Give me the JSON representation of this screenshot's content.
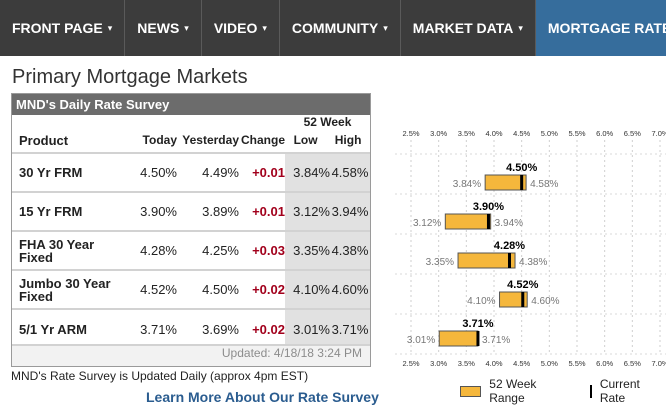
{
  "nav": {
    "items": [
      {
        "label": "FRONT PAGE",
        "caret": "▾"
      },
      {
        "label": "NEWS",
        "caret": "▾"
      },
      {
        "label": "VIDEO",
        "caret": "▾"
      },
      {
        "label": "COMMUNITY",
        "caret": "▾"
      },
      {
        "label": "MARKET DATA",
        "caret": "▾"
      },
      {
        "label": "MORTGAGE RATES",
        "caret": ""
      }
    ],
    "active_index": 5
  },
  "page_title": "Primary Mortgage Markets",
  "survey": {
    "header": "MND's Daily Rate Survey",
    "columns": {
      "product": "Product",
      "today": "Today",
      "yesterday": "Yesterday",
      "change": "Change",
      "week52": "52 Week",
      "low": "Low",
      "high": "High"
    },
    "rows": [
      {
        "product": "30 Yr FRM",
        "today": "4.50%",
        "yesterday": "4.49%",
        "change": "+0.01",
        "low": "3.84%",
        "high": "4.58%"
      },
      {
        "product": "15 Yr FRM",
        "today": "3.90%",
        "yesterday": "3.89%",
        "change": "+0.01",
        "low": "3.12%",
        "high": "3.94%"
      },
      {
        "product": "FHA 30 Year Fixed",
        "today": "4.28%",
        "yesterday": "4.25%",
        "change": "+0.03",
        "low": "3.35%",
        "high": "4.38%"
      },
      {
        "product": "Jumbo 30 Year Fixed",
        "today": "4.52%",
        "yesterday": "4.50%",
        "change": "+0.02",
        "low": "4.10%",
        "high": "4.60%"
      },
      {
        "product": "5/1 Yr ARM",
        "today": "3.71%",
        "yesterday": "3.69%",
        "change": "+0.02",
        "low": "3.01%",
        "high": "3.71%"
      }
    ],
    "updated": "Updated: 4/18/18 3:24 PM"
  },
  "note": "MND's Rate Survey is Updated Daily (approx 4pm EST)",
  "learn_more": "Learn More About Our Rate Survey",
  "legend": {
    "range_label": "52 Week Range",
    "current_label": "Current Rate"
  },
  "colors": {
    "nav_bg": "#3c3c3c",
    "nav_active": "#366d9c",
    "change_red": "#a2001c",
    "range_fill": "#f5b73c",
    "link_blue": "#2a5c8f"
  },
  "chart_data": {
    "type": "bar",
    "orientation": "horizontal-range",
    "axis_ticks": [
      "2.5%",
      "3.0%",
      "3.5%",
      "4.0%",
      "4.5%",
      "5.0%",
      "5.5%",
      "6.0%",
      "6.5%",
      "7.0%"
    ],
    "xlim": [
      2.5,
      7.0
    ],
    "categories": [
      "30 Yr FRM",
      "15 Yr FRM",
      "FHA 30 Year Fixed",
      "Jumbo 30 Year Fixed",
      "5/1 Yr ARM"
    ],
    "series": [
      {
        "name": "52 Week Range",
        "low": [
          3.84,
          3.12,
          3.35,
          4.1,
          3.01
        ],
        "high": [
          4.58,
          3.94,
          4.38,
          4.6,
          3.71
        ]
      },
      {
        "name": "Current Rate",
        "values": [
          4.5,
          3.9,
          4.28,
          4.52,
          3.71
        ]
      }
    ],
    "current_labels": [
      "4.50%",
      "3.90%",
      "4.28%",
      "4.52%",
      "3.71%"
    ],
    "low_labels": [
      "3.84%",
      "3.12%",
      "3.35%",
      "4.10%",
      "3.01%"
    ],
    "high_labels": [
      "4.58%",
      "3.94%",
      "4.38%",
      "4.60%",
      "3.71%"
    ],
    "grid": true,
    "legend": "bottom"
  }
}
